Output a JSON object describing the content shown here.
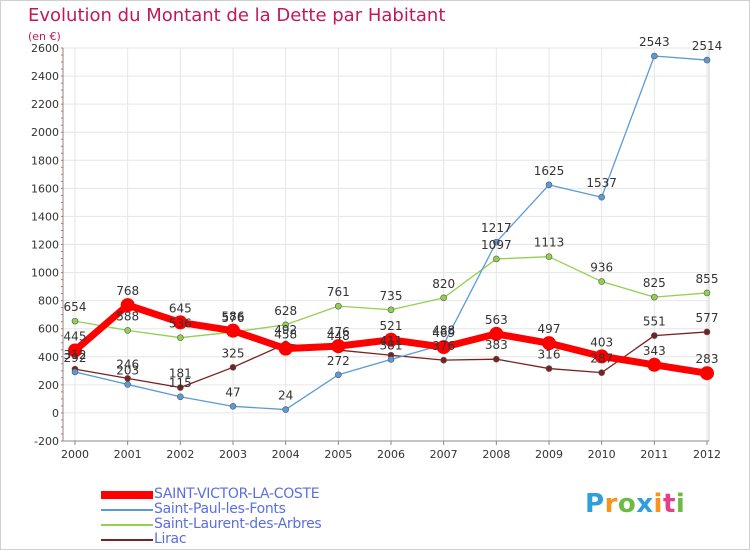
{
  "title": "Evolution du Montant de la Dette par Habitant",
  "unit_label": "(en €)",
  "logo": {
    "letters": [
      "P",
      "r",
      "o",
      "x",
      "i",
      "t",
      "i"
    ],
    "colors": [
      "#2e9fd8",
      "#f7941d",
      "#6dbb45",
      "#2e9fd8",
      "#f7941d",
      "#e63f8a",
      "#6dbb45"
    ]
  },
  "colors": {
    "title": "#c2185b",
    "legend_text": "#5b6ee1"
  },
  "chart_data": {
    "type": "line",
    "x": [
      "2000",
      "2001",
      "2002",
      "2003",
      "2004",
      "2005",
      "2006",
      "2007",
      "2008",
      "2009",
      "2010",
      "2011",
      "2012"
    ],
    "ylim": [
      -200,
      2600
    ],
    "yticks": [
      -200,
      0,
      200,
      400,
      600,
      800,
      1000,
      1200,
      1400,
      1600,
      1800,
      2000,
      2200,
      2400,
      2600
    ],
    "grid": true,
    "legend_position": "bottom-left",
    "series": [
      {
        "name": "SAINT-VICTOR-LA-COSTE",
        "color": "#ff0000",
        "values": [
          445,
          768,
          645,
          586,
          458,
          476,
          521,
          469,
          563,
          497,
          403,
          343,
          283
        ],
        "labels": [
          "445",
          "768",
          "645",
          "586",
          "458",
          "476",
          "521",
          "469",
          "563",
          "497",
          "403",
          "343",
          "283"
        ]
      },
      {
        "name": "Saint-Paul-les-Fonts",
        "color": "#5b9bd5",
        "values": [
          292,
          203,
          115,
          47,
          24,
          272,
          381,
          488,
          1217,
          1625,
          1537,
          2543,
          2514
        ],
        "labels": [
          "292",
          "203",
          "115",
          "47",
          "24",
          "272",
          "381",
          "488",
          "1217",
          "1625",
          "1537",
          "2543",
          "2514"
        ]
      },
      {
        "name": "Saint-Laurent-des-Arbres",
        "color": "#92d050",
        "values": [
          654,
          588,
          536,
          576,
          628,
          761,
          735,
          820,
          1097,
          1113,
          936,
          825,
          855
        ],
        "labels": [
          "654",
          "588",
          "536",
          "576",
          "628",
          "761",
          "735",
          "820",
          "1097",
          "1113",
          "936",
          "825",
          "855"
        ]
      },
      {
        "name": "Lirac",
        "color": "#7b2020",
        "values": [
          312,
          246,
          181,
          325,
          492,
          448,
          411,
          376,
          383,
          316,
          287,
          551,
          577
        ],
        "labels": [
          "312",
          "246",
          "181",
          "325",
          "492",
          "448",
          "411",
          "376",
          "383",
          "316",
          "287",
          "551",
          "577"
        ]
      }
    ]
  }
}
